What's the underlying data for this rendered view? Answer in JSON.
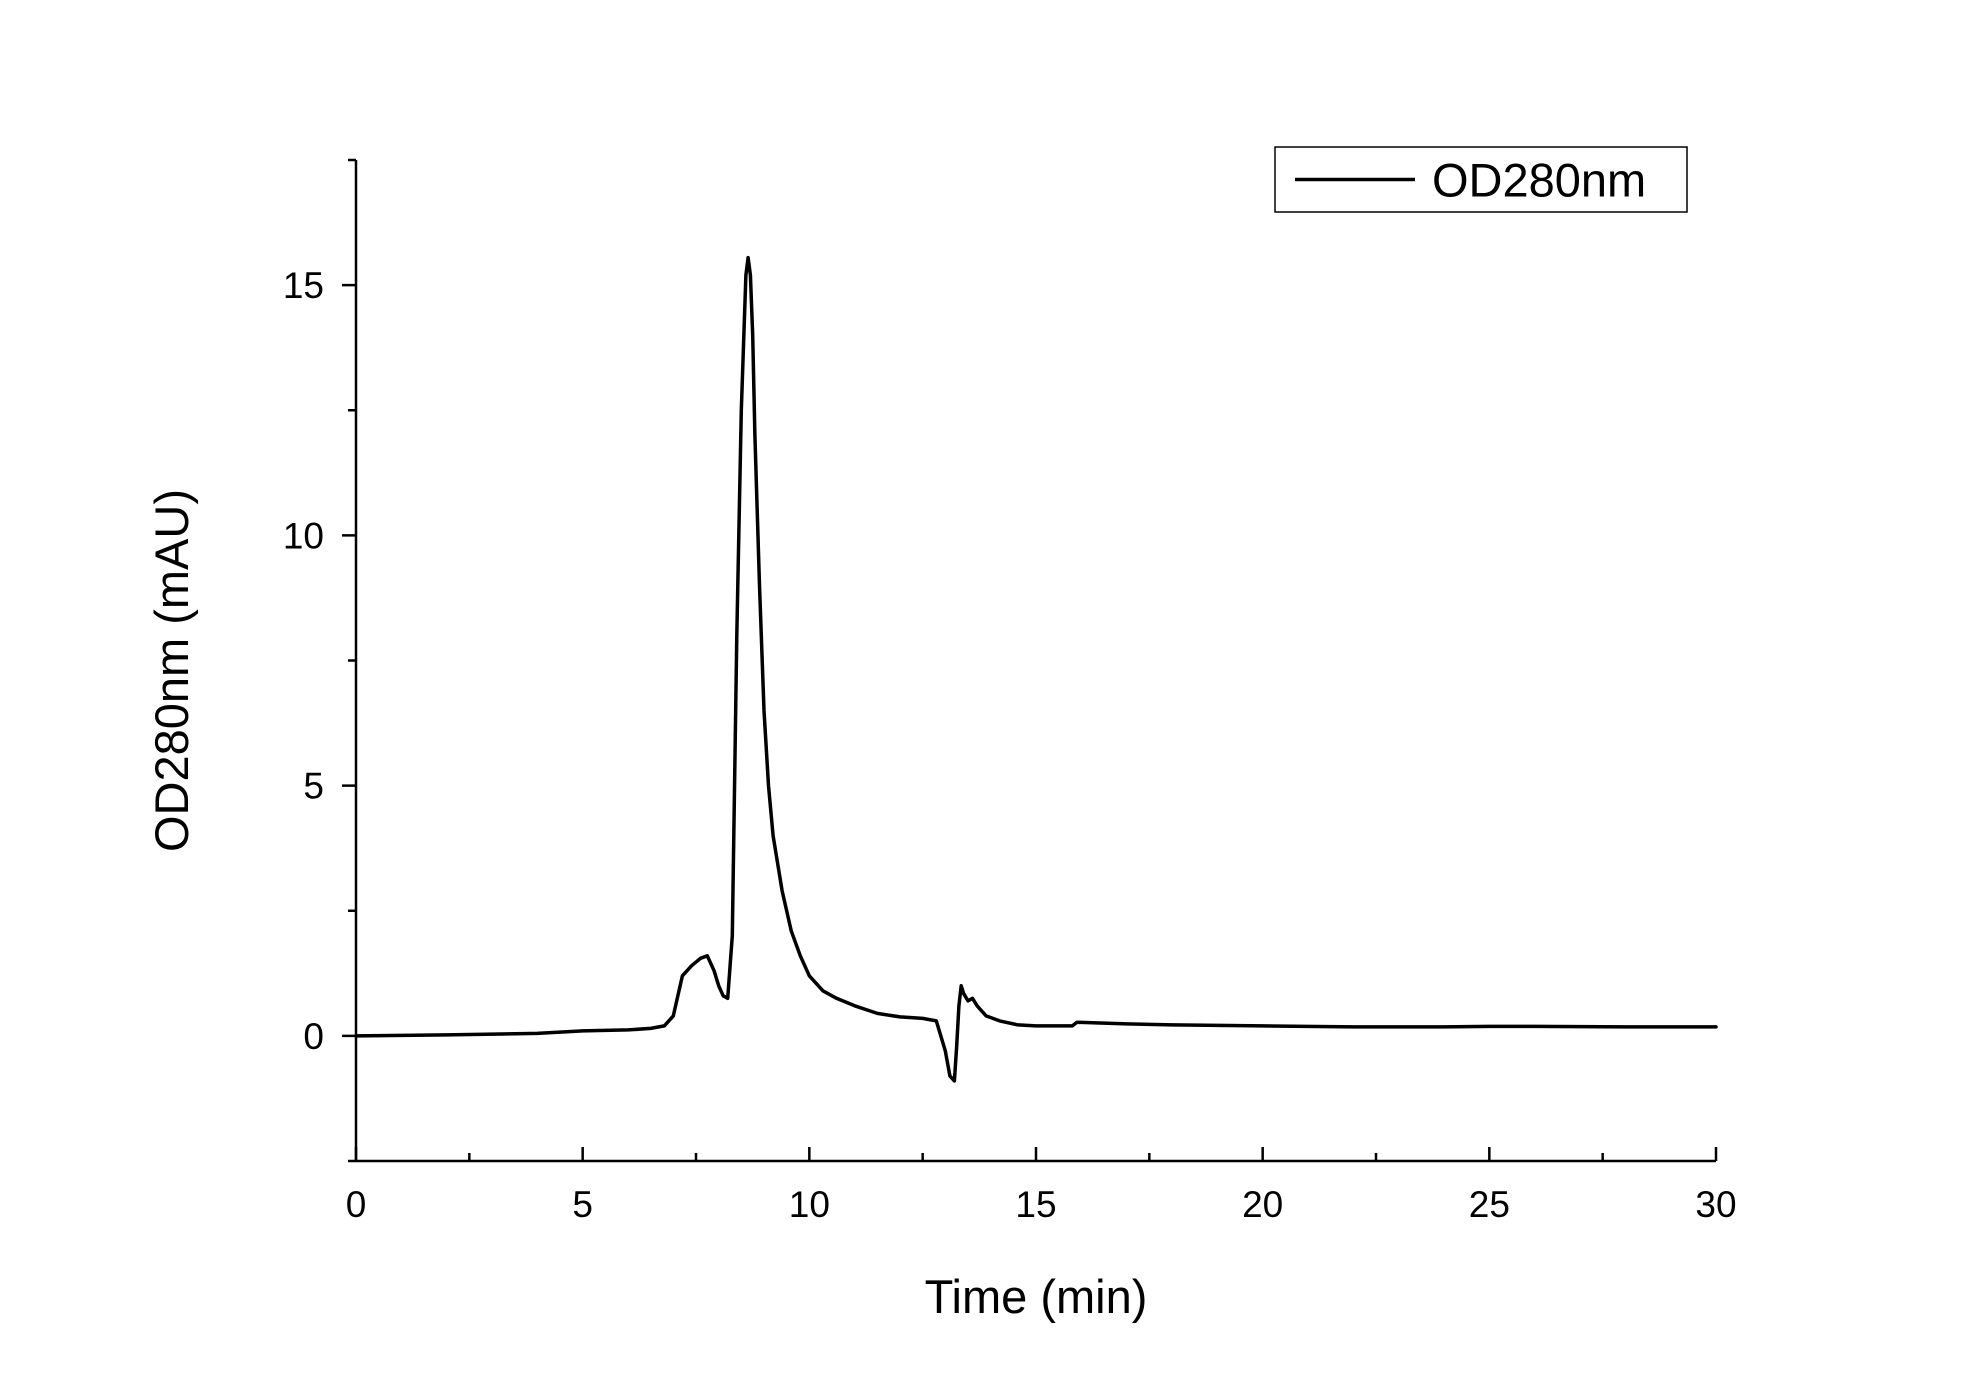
{
  "chart_data": {
    "type": "line",
    "title": "",
    "xlabel": "Time (min)",
    "ylabel": "OD280nm (mAU)",
    "xlim": [
      0,
      30
    ],
    "ylim": [
      -2.5,
      17.5
    ],
    "x_ticks": [
      0,
      5,
      10,
      15,
      20,
      25,
      30
    ],
    "x_tick_labels": [
      "0",
      "5",
      "10",
      "15",
      "20",
      "25",
      "30"
    ],
    "y_ticks": [
      0,
      5,
      10,
      15
    ],
    "y_tick_labels": [
      "0",
      "5",
      "10",
      "15"
    ],
    "x_minor_ticks": [
      2.5,
      7.5,
      12.5,
      17.5,
      22.5,
      27.5
    ],
    "y_minor_ticks": [
      -2.5,
      2.5,
      7.5,
      12.5,
      17.5
    ],
    "grid": false,
    "legend_position": "top-right",
    "series": [
      {
        "name": "OD280nm",
        "color": "#000000",
        "x": [
          0,
          2,
          4,
          5,
          6,
          6.5,
          6.8,
          7.0,
          7.2,
          7.4,
          7.6,
          7.75,
          7.9,
          8.0,
          8.1,
          8.2,
          8.3,
          8.4,
          8.5,
          8.6,
          8.65,
          8.7,
          8.75,
          8.8,
          8.9,
          9.0,
          9.1,
          9.2,
          9.4,
          9.6,
          9.8,
          10.0,
          10.3,
          10.6,
          11.0,
          11.5,
          12.0,
          12.5,
          12.8,
          13.0,
          13.1,
          13.2,
          13.25,
          13.3,
          13.35,
          13.4,
          13.5,
          13.6,
          13.7,
          13.9,
          14.2,
          14.6,
          15.0,
          15.5,
          15.8,
          15.9,
          16.0,
          17,
          18,
          20,
          22,
          24,
          25,
          26,
          28,
          30
        ],
        "y": [
          0.0,
          0.02,
          0.05,
          0.1,
          0.12,
          0.15,
          0.2,
          0.4,
          1.2,
          1.4,
          1.55,
          1.6,
          1.3,
          1.0,
          0.8,
          0.75,
          2.0,
          8.0,
          12.5,
          15.2,
          15.55,
          15.2,
          14.0,
          12.0,
          9.0,
          6.5,
          5.0,
          4.0,
          2.9,
          2.1,
          1.6,
          1.2,
          0.9,
          0.75,
          0.6,
          0.45,
          0.38,
          0.35,
          0.3,
          -0.3,
          -0.8,
          -0.9,
          -0.2,
          0.6,
          1.0,
          0.85,
          0.7,
          0.75,
          0.6,
          0.4,
          0.3,
          0.22,
          0.2,
          0.2,
          0.2,
          0.27,
          0.27,
          0.24,
          0.22,
          0.2,
          0.18,
          0.18,
          0.19,
          0.19,
          0.18,
          0.18
        ]
      }
    ]
  }
}
